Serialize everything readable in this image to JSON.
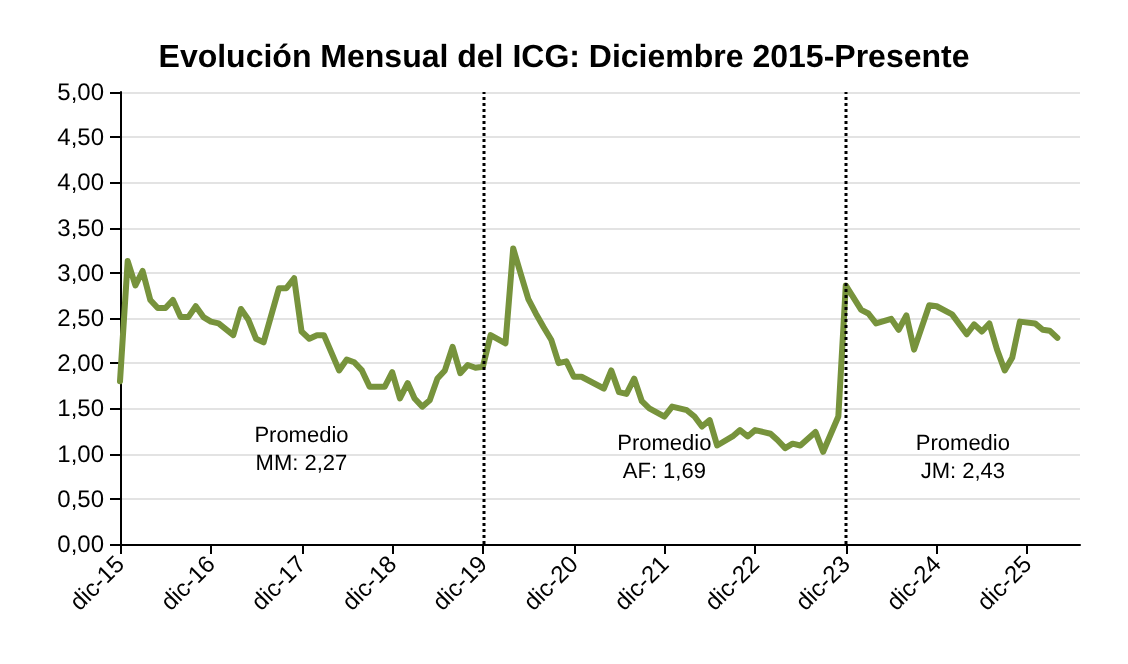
{
  "chart_data": {
    "type": "line",
    "title": "Evolución Mensual del ICG: Diciembre 2015-Presente",
    "x": [
      "2015-12",
      "2016-01",
      "2016-02",
      "2016-03",
      "2016-04",
      "2016-05",
      "2016-06",
      "2016-07",
      "2016-08",
      "2016-09",
      "2016-10",
      "2016-11",
      "2016-12",
      "2017-01",
      "2017-03",
      "2017-04",
      "2017-05",
      "2017-06",
      "2017-07",
      "2017-09",
      "2017-10",
      "2017-11",
      "2017-12",
      "2018-01",
      "2018-02",
      "2018-03",
      "2018-05",
      "2018-06",
      "2018-07",
      "2018-08",
      "2018-09",
      "2018-11",
      "2018-12",
      "2019-01",
      "2019-02",
      "2019-03",
      "2019-04",
      "2019-05",
      "2019-06",
      "2019-07",
      "2019-08",
      "2019-09",
      "2019-10",
      "2019-11",
      "2019-12",
      "2020-01",
      "2020-03",
      "2020-04",
      "2020-05",
      "2020-06",
      "2020-07",
      "2020-08",
      "2020-09",
      "2020-10",
      "2020-11",
      "2020-12",
      "2021-01",
      "2021-04",
      "2021-05",
      "2021-06",
      "2021-07",
      "2021-08",
      "2021-09",
      "2021-10",
      "2021-12",
      "2022-01",
      "2022-03",
      "2022-04",
      "2022-05",
      "2022-06",
      "2022-07",
      "2022-09",
      "2022-10",
      "2022-11",
      "2022-12",
      "2023-02",
      "2023-03",
      "2023-04",
      "2023-05",
      "2023-06",
      "2023-08",
      "2023-09",
      "2023-11",
      "2023-12",
      "2024-02",
      "2024-03",
      "2024-04",
      "2024-06",
      "2024-07",
      "2024-08",
      "2024-09",
      "2024-11",
      "2024-12",
      "2025-02",
      "2025-04",
      "2025-05",
      "2025-06",
      "2025-07",
      "2025-08",
      "2025-09",
      "2025-10",
      "2025-11",
      "2026-01",
      "2026-02",
      "2026-03",
      "2026-04"
    ],
    "series": [
      {
        "color": "#77933c",
        "values": [
          1.8,
          3.13,
          2.86,
          3.02,
          2.7,
          2.61,
          2.61,
          2.7,
          2.51,
          2.51,
          2.63,
          2.51,
          2.46,
          2.44,
          2.31,
          2.6,
          2.48,
          2.27,
          2.23,
          2.83,
          2.83,
          2.94,
          2.35,
          2.27,
          2.31,
          2.31,
          1.92,
          2.04,
          2.01,
          1.92,
          1.74,
          1.74,
          1.9,
          1.61,
          1.78,
          1.61,
          1.52,
          1.59,
          1.83,
          1.92,
          2.18,
          1.89,
          1.98,
          1.95,
          1.96,
          2.31,
          2.22,
          3.27,
          2.99,
          2.71,
          2.55,
          2.4,
          2.26,
          2.0,
          2.02,
          1.85,
          1.85,
          1.72,
          1.92,
          1.68,
          1.66,
          1.83,
          1.58,
          1.5,
          1.41,
          1.52,
          1.48,
          1.41,
          1.3,
          1.37,
          1.09,
          1.19,
          1.26,
          1.19,
          1.26,
          1.22,
          1.15,
          1.06,
          1.11,
          1.09,
          1.24,
          1.02,
          1.41,
          2.86,
          2.59,
          2.55,
          2.44,
          2.49,
          2.37,
          2.53,
          2.15,
          2.64,
          2.63,
          2.54,
          2.32,
          2.43,
          2.35,
          2.44,
          2.15,
          1.92,
          2.06,
          2.46,
          2.44,
          2.37,
          2.36,
          2.28
        ]
      }
    ],
    "xlim": [
      "2015-12",
      "2026-07"
    ],
    "xticks": [
      {
        "value": "2015-12",
        "label": "dic-15"
      },
      {
        "value": "2016-12",
        "label": "dic-16"
      },
      {
        "value": "2017-12",
        "label": "dic-17"
      },
      {
        "value": "2018-12",
        "label": "dic-18"
      },
      {
        "value": "2019-12",
        "label": "dic-19"
      },
      {
        "value": "2020-12",
        "label": "dic-20"
      },
      {
        "value": "2021-12",
        "label": "dic-21"
      },
      {
        "value": "2022-12",
        "label": "dic-22"
      },
      {
        "value": "2023-12",
        "label": "dic-23"
      },
      {
        "value": "2024-12",
        "label": "dic-24"
      },
      {
        "value": "2025-12",
        "label": "dic-25"
      }
    ],
    "ylim": [
      0,
      5
    ],
    "yticks": [
      {
        "value": 0,
        "label": "0,00"
      },
      {
        "value": 0.5,
        "label": "0,50"
      },
      {
        "value": 1,
        "label": "1,00"
      },
      {
        "value": 1.5,
        "label": "1,50"
      },
      {
        "value": 2,
        "label": "2,00"
      },
      {
        "value": 2.5,
        "label": "2,50"
      },
      {
        "value": 3,
        "label": "3,00"
      },
      {
        "value": 3.5,
        "label": "3,50"
      },
      {
        "value": 4,
        "label": "4,00"
      },
      {
        "value": 4.5,
        "label": "4,50"
      },
      {
        "value": 5,
        "label": "5,00"
      }
    ],
    "grid": "y",
    "marker": "none",
    "line_style": "solid",
    "ref_lines": [
      {
        "axis": "x",
        "value": "2019-12",
        "color": "#000000",
        "line_style": "dotted"
      },
      {
        "axis": "x",
        "value": "2023-12",
        "color": "#000000",
        "line_style": "dotted"
      }
    ],
    "annotations": [
      "Promedio\nMM: 2,27",
      "Promedio\nAF: 1,69",
      "Promedio\nJM: 2,43"
    ]
  }
}
